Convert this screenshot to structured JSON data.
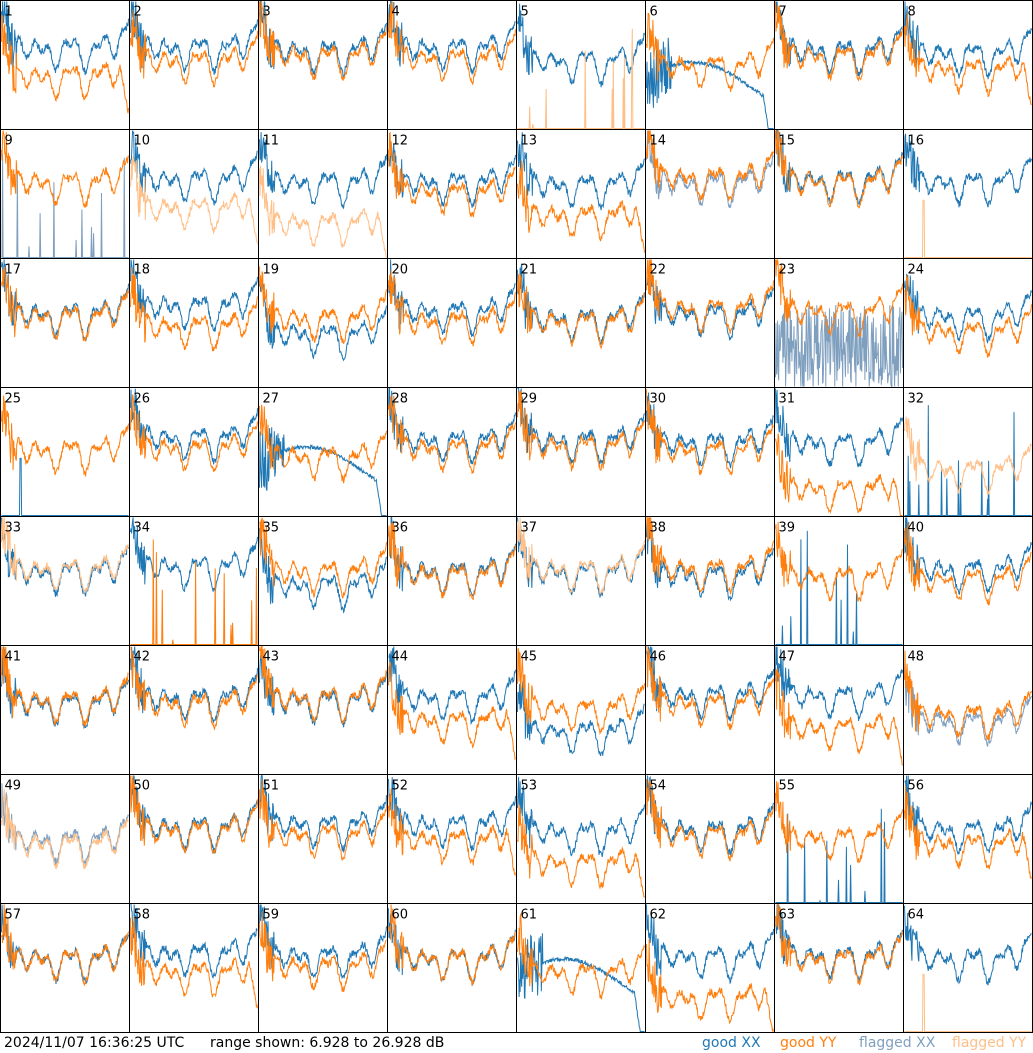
{
  "footer": {
    "timestamp": "2024/11/07 16:36:25 UTC",
    "range_text": "range shown: 6.928 to 26.928 dB"
  },
  "legend": [
    {
      "label": "good XX",
      "color": "#1f77b4"
    },
    {
      "label": "good YY",
      "color": "#ff7f0e"
    },
    {
      "label": "flagged XX",
      "color": "#7f9fbf"
    },
    {
      "label": "flagged YY",
      "color": "#ffbf87"
    }
  ],
  "chart_data": {
    "type": "line",
    "layout": "8x8 small multiples",
    "unit": "dB",
    "y_range": [
      6.928,
      26.928
    ],
    "grid": false,
    "legend_placement": "bottom-right",
    "panels": [
      {
        "id": "1",
        "xx": "good",
        "yy": "good",
        "xx_level": 0.72,
        "yy_level": 0.5,
        "shape": "rolloff"
      },
      {
        "id": "2",
        "xx": "good",
        "yy": "good",
        "xx_level": 0.72,
        "yy_level": 0.62,
        "shape": "normal"
      },
      {
        "id": "3",
        "xx": "good",
        "yy": "good",
        "xx_level": 0.7,
        "yy_level": 0.66,
        "shape": "normal"
      },
      {
        "id": "4",
        "xx": "good",
        "yy": "good",
        "xx_level": 0.72,
        "yy_level": 0.64,
        "shape": "normal"
      },
      {
        "id": "5",
        "xx": "good",
        "yy": "flagged",
        "xx_level": 0.62,
        "yy_level": 0.0,
        "shape": "spikes-yy"
      },
      {
        "id": "6",
        "xx": "good",
        "yy": "good",
        "xx_level": 0.3,
        "yy_level": 0.58,
        "shape": "bowl-xx"
      },
      {
        "id": "7",
        "xx": "good",
        "yy": "good",
        "xx_level": 0.7,
        "yy_level": 0.66,
        "shape": "normal"
      },
      {
        "id": "8",
        "xx": "good",
        "yy": "good",
        "xx_level": 0.68,
        "yy_level": 0.55,
        "shape": "rolloff"
      },
      {
        "id": "9",
        "xx": "flagged",
        "yy": "good",
        "xx_level": 0.0,
        "yy_level": 0.68,
        "shape": "spikes-xx"
      },
      {
        "id": "10",
        "xx": "good",
        "yy": "flagged",
        "xx_level": 0.7,
        "yy_level": 0.48,
        "shape": "rolloff"
      },
      {
        "id": "11",
        "xx": "good",
        "yy": "flagged",
        "xx_level": 0.68,
        "yy_level": 0.36,
        "shape": "rolloff"
      },
      {
        "id": "12",
        "xx": "good",
        "yy": "good",
        "xx_level": 0.68,
        "yy_level": 0.6,
        "shape": "normal"
      },
      {
        "id": "13",
        "xx": "good",
        "yy": "good",
        "xx_level": 0.66,
        "yy_level": 0.42,
        "shape": "rolloff"
      },
      {
        "id": "14",
        "xx": "flagged",
        "yy": "good",
        "xx_level": 0.68,
        "yy_level": 0.72,
        "shape": "normal"
      },
      {
        "id": "15",
        "xx": "good",
        "yy": "good",
        "xx_level": 0.7,
        "yy_level": 0.68,
        "shape": "normal"
      },
      {
        "id": "16",
        "xx": "good",
        "yy": "flagged",
        "xx_level": 0.68,
        "yy_level": 0.0,
        "shape": "spike1-yy"
      },
      {
        "id": "17",
        "xx": "good",
        "yy": "good",
        "xx_level": 0.66,
        "yy_level": 0.64,
        "shape": "normal"
      },
      {
        "id": "18",
        "xx": "good",
        "yy": "good",
        "xx_level": 0.72,
        "yy_level": 0.56,
        "shape": "normal"
      },
      {
        "id": "19",
        "xx": "good",
        "yy": "good",
        "xx_level": 0.5,
        "yy_level": 0.62,
        "shape": "normal"
      },
      {
        "id": "20",
        "xx": "good",
        "yy": "good",
        "xx_level": 0.68,
        "yy_level": 0.6,
        "shape": "normal"
      },
      {
        "id": "21",
        "xx": "good",
        "yy": "good",
        "xx_level": 0.62,
        "yy_level": 0.6,
        "shape": "normal"
      },
      {
        "id": "22",
        "xx": "good",
        "yy": "good",
        "xx_level": 0.66,
        "yy_level": 0.7,
        "shape": "normal"
      },
      {
        "id": "23",
        "xx": "flagged",
        "yy": "good",
        "xx_level": 0.3,
        "yy_level": 0.68,
        "shape": "noise-xx"
      },
      {
        "id": "24",
        "xx": "good",
        "yy": "good",
        "xx_level": 0.64,
        "yy_level": 0.52,
        "shape": "normal"
      },
      {
        "id": "25",
        "xx": "good",
        "yy": "good",
        "xx_level": 0.0,
        "yy_level": 0.6,
        "shape": "spike1-xx"
      },
      {
        "id": "26",
        "xx": "good",
        "yy": "good",
        "xx_level": 0.7,
        "yy_level": 0.62,
        "shape": "normal"
      },
      {
        "id": "27",
        "xx": "good",
        "yy": "good",
        "xx_level": 0.32,
        "yy_level": 0.55,
        "shape": "bowl-xx"
      },
      {
        "id": "28",
        "xx": "good",
        "yy": "good",
        "xx_level": 0.68,
        "yy_level": 0.62,
        "shape": "normal"
      },
      {
        "id": "29",
        "xx": "good",
        "yy": "good",
        "xx_level": 0.68,
        "yy_level": 0.64,
        "shape": "normal"
      },
      {
        "id": "30",
        "xx": "good",
        "yy": "good",
        "xx_level": 0.66,
        "yy_level": 0.6,
        "shape": "normal"
      },
      {
        "id": "31",
        "xx": "good",
        "yy": "good",
        "xx_level": 0.66,
        "yy_level": 0.3,
        "shape": "rolloff"
      },
      {
        "id": "32",
        "xx": "good",
        "yy": "flagged",
        "xx_level": 0.0,
        "yy_level": 0.45,
        "shape": "spikes-xx"
      },
      {
        "id": "33",
        "xx": "good",
        "yy": "flagged",
        "xx_level": 0.66,
        "yy_level": 0.68,
        "shape": "normal"
      },
      {
        "id": "34",
        "xx": "good",
        "yy": "good",
        "xx_level": 0.7,
        "yy_level": 0.0,
        "shape": "spikes-yy"
      },
      {
        "id": "35",
        "xx": "good",
        "yy": "good",
        "xx_level": 0.55,
        "yy_level": 0.66,
        "shape": "normal"
      },
      {
        "id": "36",
        "xx": "good",
        "yy": "good",
        "xx_level": 0.66,
        "yy_level": 0.64,
        "shape": "normal"
      },
      {
        "id": "37",
        "xx": "good",
        "yy": "flagged",
        "xx_level": 0.66,
        "yy_level": 0.68,
        "shape": "normal"
      },
      {
        "id": "38",
        "xx": "good",
        "yy": "good",
        "xx_level": 0.64,
        "yy_level": 0.68,
        "shape": "normal"
      },
      {
        "id": "39",
        "xx": "good",
        "yy": "good",
        "xx_level": 0.0,
        "yy_level": 0.62,
        "shape": "spikes-xx"
      },
      {
        "id": "40",
        "xx": "good",
        "yy": "good",
        "xx_level": 0.68,
        "yy_level": 0.6,
        "shape": "normal"
      },
      {
        "id": "41",
        "xx": "good",
        "yy": "good",
        "xx_level": 0.64,
        "yy_level": 0.66,
        "shape": "normal"
      },
      {
        "id": "42",
        "xx": "good",
        "yy": "good",
        "xx_level": 0.68,
        "yy_level": 0.64,
        "shape": "normal"
      },
      {
        "id": "43",
        "xx": "good",
        "yy": "good",
        "xx_level": 0.66,
        "yy_level": 0.68,
        "shape": "normal"
      },
      {
        "id": "44",
        "xx": "good",
        "yy": "good",
        "xx_level": 0.68,
        "yy_level": 0.5,
        "shape": "rolloff"
      },
      {
        "id": "45",
        "xx": "good",
        "yy": "good",
        "xx_level": 0.42,
        "yy_level": 0.6,
        "shape": "normal"
      },
      {
        "id": "46",
        "xx": "good",
        "yy": "good",
        "xx_level": 0.7,
        "yy_level": 0.64,
        "shape": "normal"
      },
      {
        "id": "47",
        "xx": "good",
        "yy": "good",
        "xx_level": 0.7,
        "yy_level": 0.45,
        "shape": "rolloff"
      },
      {
        "id": "48",
        "xx": "flagged",
        "yy": "good",
        "xx_level": 0.5,
        "yy_level": 0.55,
        "shape": "normal"
      },
      {
        "id": "49",
        "xx": "flagged",
        "yy": "flagged",
        "xx_level": 0.58,
        "yy_level": 0.55,
        "shape": "normal"
      },
      {
        "id": "50",
        "xx": "good",
        "yy": "good",
        "xx_level": 0.68,
        "yy_level": 0.66,
        "shape": "normal"
      },
      {
        "id": "51",
        "xx": "good",
        "yy": "good",
        "xx_level": 0.7,
        "yy_level": 0.62,
        "shape": "normal"
      },
      {
        "id": "52",
        "xx": "good",
        "yy": "good",
        "xx_level": 0.7,
        "yy_level": 0.58,
        "shape": "rolloff"
      },
      {
        "id": "53",
        "xx": "good",
        "yy": "good",
        "xx_level": 0.64,
        "yy_level": 0.4,
        "shape": "rolloff"
      },
      {
        "id": "54",
        "xx": "good",
        "yy": "good",
        "xx_level": 0.66,
        "yy_level": 0.62,
        "shape": "normal"
      },
      {
        "id": "55",
        "xx": "good",
        "yy": "good",
        "xx_level": 0.0,
        "yy_level": 0.6,
        "shape": "spikes-xx"
      },
      {
        "id": "56",
        "xx": "good",
        "yy": "good",
        "xx_level": 0.66,
        "yy_level": 0.55,
        "shape": "rolloff"
      },
      {
        "id": "57",
        "xx": "good",
        "yy": "good",
        "xx_level": 0.66,
        "yy_level": 0.66,
        "shape": "normal"
      },
      {
        "id": "58",
        "xx": "good",
        "yy": "good",
        "xx_level": 0.7,
        "yy_level": 0.55,
        "shape": "rolloff"
      },
      {
        "id": "59",
        "xx": "good",
        "yy": "good",
        "xx_level": 0.68,
        "yy_level": 0.6,
        "shape": "normal"
      },
      {
        "id": "60",
        "xx": "good",
        "yy": "good",
        "xx_level": 0.66,
        "yy_level": 0.66,
        "shape": "normal"
      },
      {
        "id": "61",
        "xx": "good",
        "yy": "good",
        "xx_level": 0.35,
        "yy_level": 0.55,
        "shape": "bowl-xx"
      },
      {
        "id": "62",
        "xx": "good",
        "yy": "good",
        "xx_level": 0.68,
        "yy_level": 0.35,
        "shape": "rolloff"
      },
      {
        "id": "63",
        "xx": "good",
        "yy": "good",
        "xx_level": 0.68,
        "yy_level": 0.66,
        "shape": "normal"
      },
      {
        "id": "64",
        "xx": "good",
        "yy": "flagged",
        "xx_level": 0.66,
        "yy_level": 0.0,
        "shape": "spike1-yy"
      }
    ]
  }
}
